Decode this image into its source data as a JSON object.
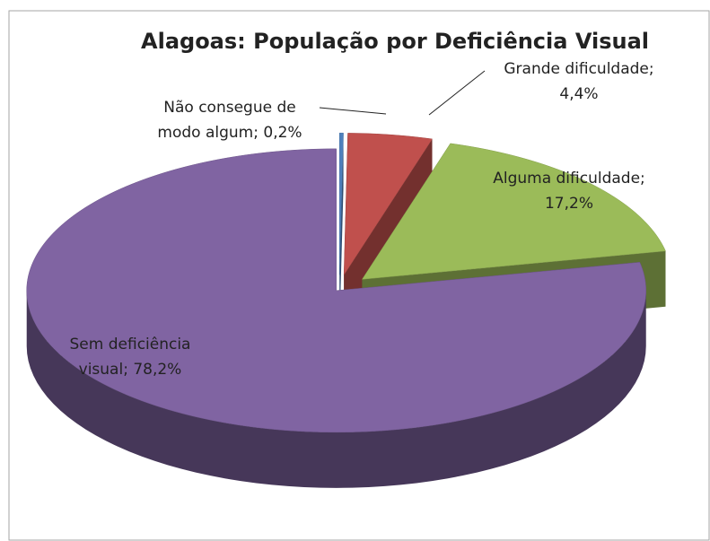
{
  "chart_data": {
    "type": "pie",
    "title": "Alagoas: População por Deficiência Visual",
    "values": [
      0.2,
      4.4,
      17.2,
      78.2
    ],
    "value_labels": [
      "Não consegue de\nmodo algum; 0,2%",
      "Grande  dificuldade;\n4,4%",
      "Alguma dificuldade;\n17,2%",
      "Sem deficiência\nvisual; 78,2%"
    ],
    "colors": [
      "#4f81bd",
      "#c0504d",
      "#9bbb59",
      "#8064a2"
    ],
    "three_d": true,
    "exploded": true
  }
}
